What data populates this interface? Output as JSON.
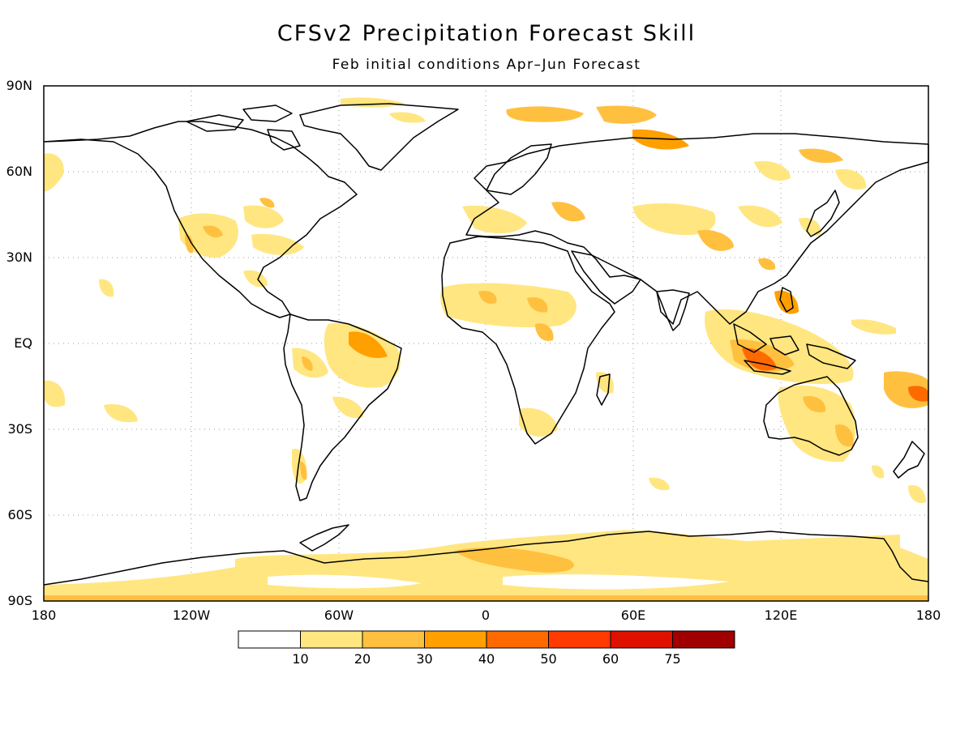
{
  "title": "CFSv2 Precipitation Forecast Skill",
  "subtitle": "Feb initial conditions   Apr–Jun Forecast",
  "axes": {
    "lat_labels": [
      "90N",
      "60N",
      "30N",
      "EQ",
      "30S",
      "60S",
      "90S"
    ],
    "lon_labels": [
      "180",
      "120W",
      "60W",
      "0",
      "60E",
      "120E",
      "180"
    ]
  },
  "legend": {
    "bins": [
      {
        "label": "",
        "color": "#ffffff"
      },
      {
        "label": "10",
        "color": "#ffe680"
      },
      {
        "label": "20",
        "color": "#ffc040"
      },
      {
        "label": "30",
        "color": "#ffa000"
      },
      {
        "label": "40",
        "color": "#ff6a00"
      },
      {
        "label": "50",
        "color": "#ff3a00"
      },
      {
        "label": "60",
        "color": "#e01000"
      },
      {
        "label": "75",
        "color": "#a00000"
      }
    ]
  },
  "colors": {
    "skill_10_20": "#ffe680",
    "skill_20_30": "#ffc040",
    "skill_30_40": "#ffa000",
    "skill_40_50": "#ff6a00",
    "coastline": "#000000",
    "grid": "#999999"
  }
}
